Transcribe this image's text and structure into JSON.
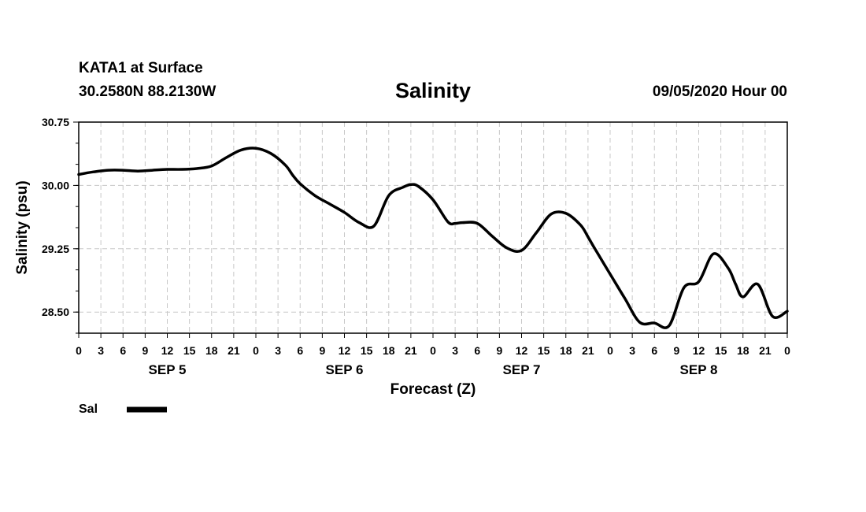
{
  "header": {
    "station": "KATA1 at Surface",
    "coords": "30.2580N 88.2130W",
    "title": "Salinity",
    "stamp": "09/05/2020 Hour 00"
  },
  "chart_data": {
    "type": "line",
    "title": "Salinity",
    "xlabel": "Forecast (Z)",
    "ylabel": "Salinity (psu)",
    "ylim": [
      28.25,
      30.75
    ],
    "xlim": [
      0,
      96
    ],
    "x_unit": "hours from 09/05/2020 00Z",
    "yticks": [
      "30.75",
      "30.00",
      "29.25",
      "28.50"
    ],
    "ytick_values": [
      30.75,
      30.0,
      29.25,
      28.5
    ],
    "xtick_labels": [
      "0",
      "3",
      "6",
      "9",
      "12",
      "15",
      "18",
      "21",
      "0",
      "3",
      "6",
      "9",
      "12",
      "15",
      "18",
      "21",
      "0",
      "3",
      "6",
      "9",
      "12",
      "15",
      "18",
      "21",
      "0",
      "3",
      "6",
      "9",
      "12",
      "15",
      "18",
      "21",
      "0"
    ],
    "day_labels": [
      "SEP 5",
      "SEP 6",
      "SEP 7",
      "SEP 8"
    ],
    "grid": true,
    "legend": "bottom-left",
    "series": [
      {
        "name": "Sal",
        "color": "#000000",
        "x": [
          0,
          2,
          4,
          6,
          8,
          10,
          12,
          14,
          16,
          18,
          20,
          22,
          24,
          26,
          28,
          29,
          30,
          32,
          34,
          36,
          38,
          40,
          42,
          44,
          45,
          46,
          48,
          50,
          51,
          52,
          54,
          56,
          58,
          60,
          62,
          64,
          66,
          68,
          69,
          70,
          72,
          74,
          76,
          78,
          80,
          82,
          84,
          86,
          88,
          89,
          90,
          92,
          94,
          96
        ],
        "y": [
          30.13,
          30.16,
          30.18,
          30.18,
          30.17,
          30.18,
          30.19,
          30.19,
          30.2,
          30.23,
          30.33,
          30.42,
          30.44,
          30.38,
          30.24,
          30.12,
          30.02,
          29.88,
          29.78,
          29.68,
          29.56,
          29.52,
          29.88,
          29.98,
          30.01,
          29.99,
          29.83,
          29.57,
          29.55,
          29.56,
          29.55,
          29.4,
          29.26,
          29.23,
          29.44,
          29.66,
          29.67,
          29.53,
          29.39,
          29.24,
          28.95,
          28.66,
          28.38,
          28.37,
          28.34,
          28.79,
          28.86,
          29.19,
          29.02,
          28.83,
          28.68,
          28.83,
          28.45,
          28.51
        ]
      }
    ]
  }
}
